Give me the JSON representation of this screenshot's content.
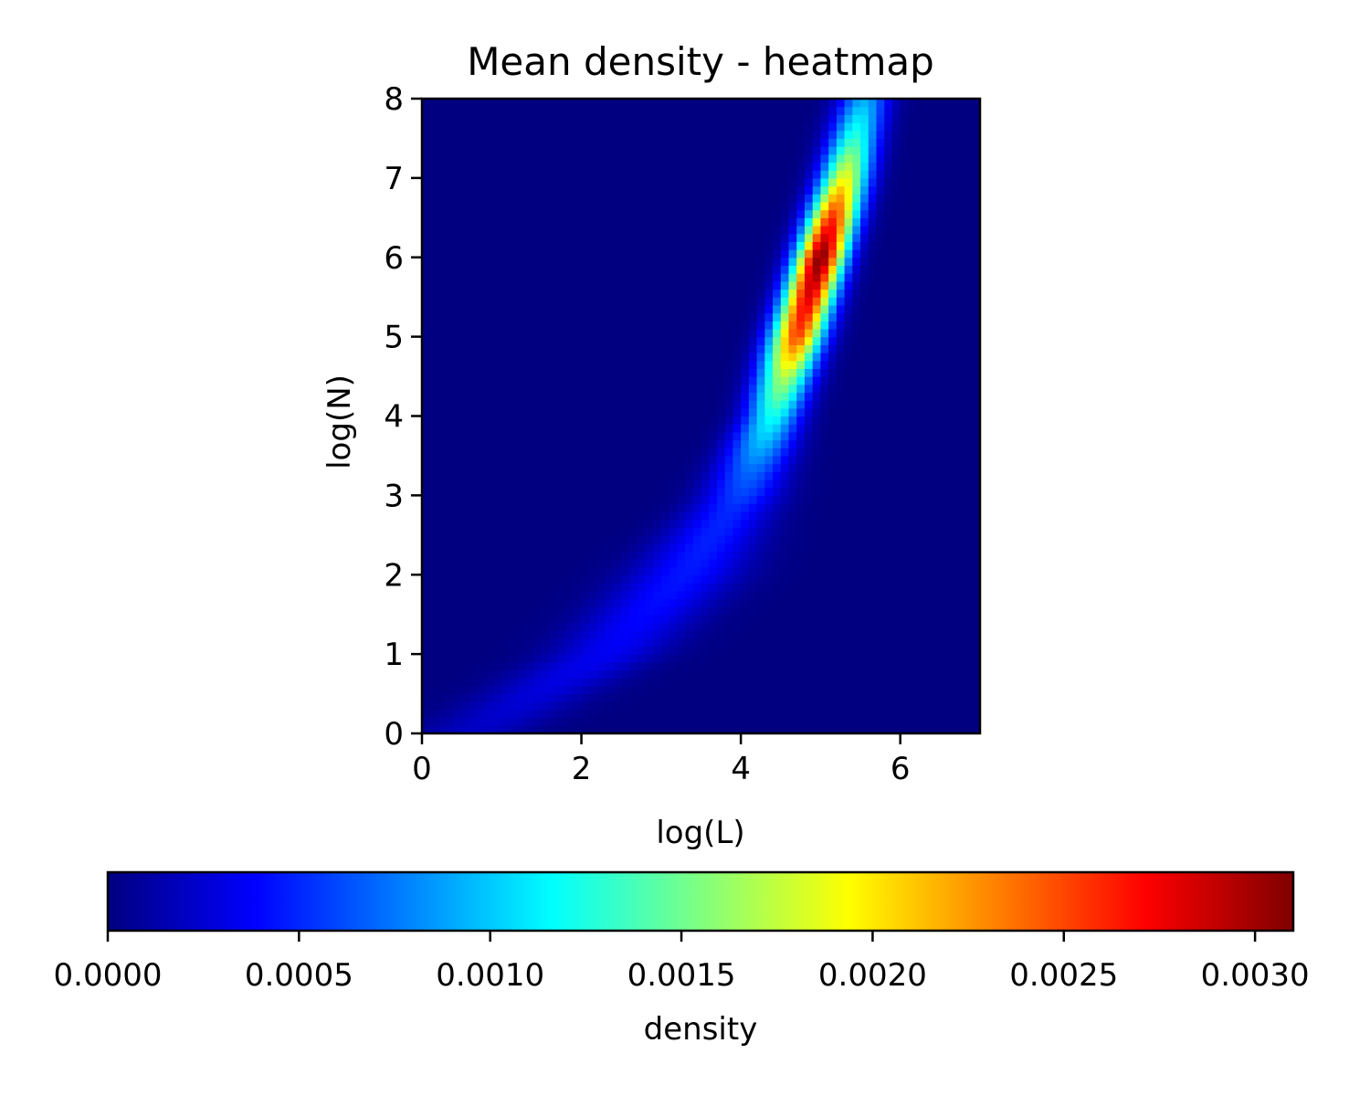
{
  "chart_data": {
    "type": "heatmap",
    "title": "Mean density - heatmap",
    "xlabel": "log(L)",
    "ylabel": "log(N)",
    "xlim": [
      0,
      7
    ],
    "ylim": [
      0,
      8
    ],
    "xticks": [
      "0",
      "2",
      "4",
      "6"
    ],
    "yticks": [
      "0",
      "1",
      "2",
      "3",
      "4",
      "5",
      "6",
      "7",
      "8"
    ],
    "grid_size": [
      70,
      80
    ],
    "colormap": "jet",
    "colorbar": {
      "label": "density",
      "orientation": "horizontal",
      "placement": "bottom",
      "range": [
        0,
        0.0031
      ],
      "ticks": [
        "0.0000",
        "0.0005",
        "0.0010",
        "0.0015",
        "0.0020",
        "0.0025",
        "0.0030"
      ]
    },
    "density_model": {
      "ridge": [
        {
          "logN": 0.0,
          "logL": 0.6
        },
        {
          "logN": 1.0,
          "logL": 2.3
        },
        {
          "logN": 2.0,
          "logL": 3.3
        },
        {
          "logN": 3.0,
          "logL": 4.0
        },
        {
          "logN": 4.0,
          "logL": 4.4
        },
        {
          "logN": 5.0,
          "logL": 4.7
        },
        {
          "logN": 6.0,
          "logL": 5.0
        },
        {
          "logN": 7.0,
          "logL": 5.3
        },
        {
          "logN": 8.0,
          "logL": 5.55
        }
      ],
      "peak_density": [
        {
          "logN": 0.0,
          "value": 0.0002
        },
        {
          "logN": 1.0,
          "value": 0.00035
        },
        {
          "logN": 2.0,
          "value": 0.00045
        },
        {
          "logN": 2.8,
          "value": 0.0005
        },
        {
          "logN": 3.3,
          "value": 0.0007
        },
        {
          "logN": 4.0,
          "value": 0.0012
        },
        {
          "logN": 4.5,
          "value": 0.0017
        },
        {
          "logN": 5.0,
          "value": 0.0025
        },
        {
          "logN": 5.5,
          "value": 0.0028
        },
        {
          "logN": 6.0,
          "value": 0.0031
        },
        {
          "logN": 6.5,
          "value": 0.0026
        },
        {
          "logN": 7.0,
          "value": 0.0019
        },
        {
          "logN": 7.5,
          "value": 0.0013
        },
        {
          "logN": 8.0,
          "value": 0.0009
        }
      ],
      "spread_logL": [
        {
          "logN": 0.0,
          "value": 0.5
        },
        {
          "logN": 2.0,
          "value": 0.5
        },
        {
          "logN": 3.0,
          "value": 0.35
        },
        {
          "logN": 4.0,
          "value": 0.25
        },
        {
          "logN": 6.0,
          "value": 0.22
        },
        {
          "logN": 8.0,
          "value": 0.22
        }
      ]
    }
  }
}
